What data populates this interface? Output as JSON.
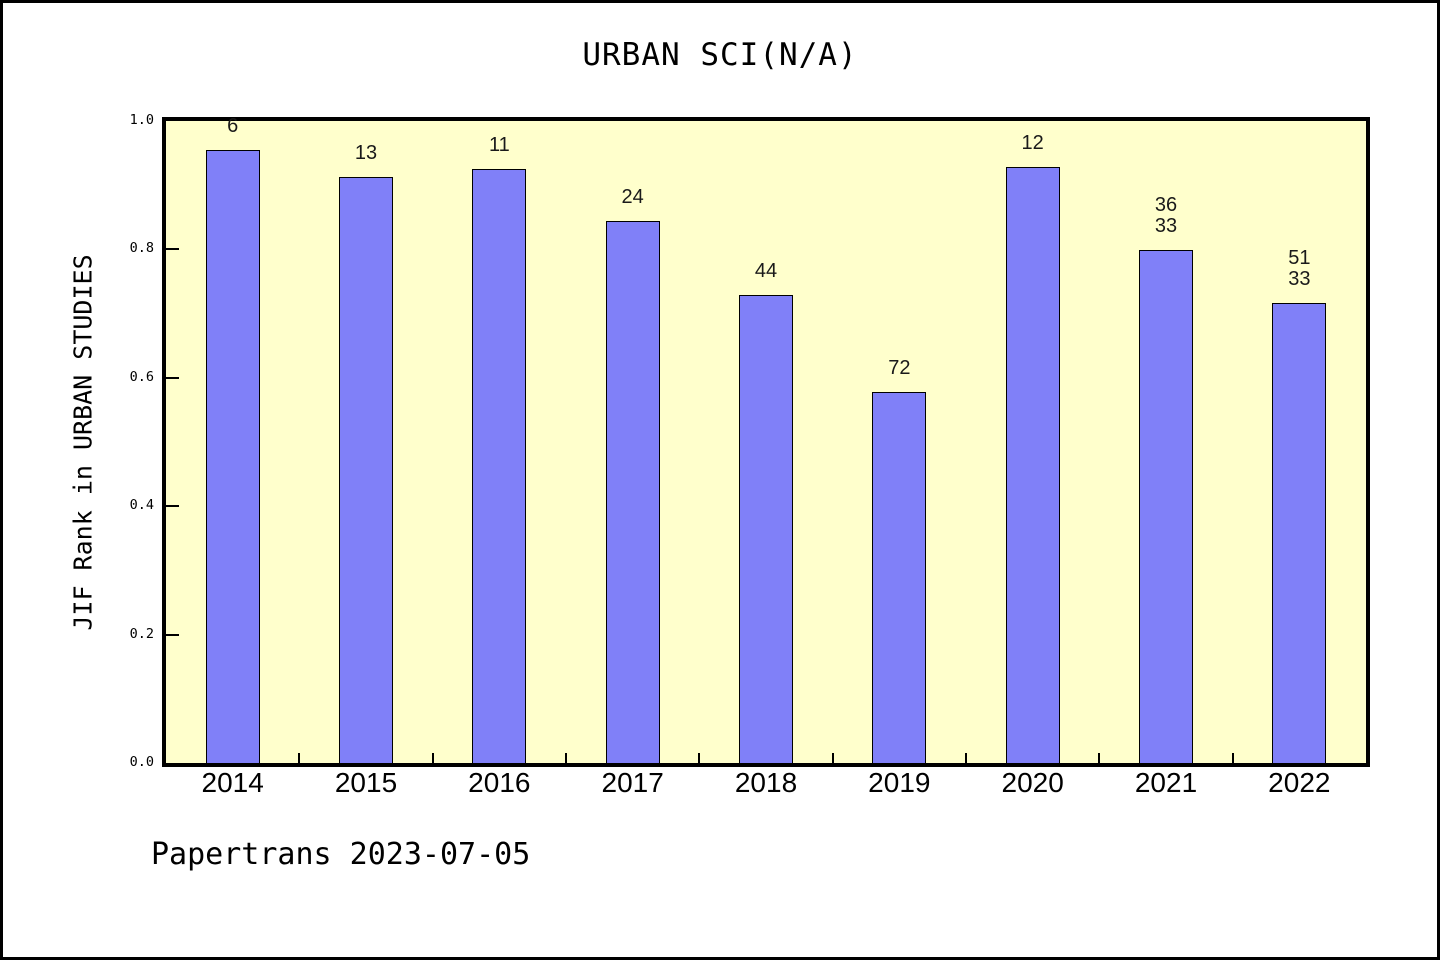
{
  "title": "URBAN SCI(N/A)",
  "footer": "Papertrans 2023-07-05",
  "chart_data": {
    "type": "bar",
    "title": "URBAN SCI(N/A)",
    "xlabel": "",
    "ylabel": "JIF Rank in URBAN STUDIES",
    "categories": [
      "2014",
      "2015",
      "2016",
      "2017",
      "2018",
      "2019",
      "2020",
      "2021",
      "2022"
    ],
    "values": [
      0.955,
      0.913,
      0.926,
      0.844,
      0.729,
      0.578,
      0.928,
      0.799,
      0.717
    ],
    "bar_labels": [
      "6",
      "13",
      "11",
      "24",
      "44",
      "72",
      "12",
      "36\n33",
      "51\n33"
    ],
    "ylim": [
      0.0,
      1.0
    ],
    "ytick_labels": [
      "0.0",
      "0.2",
      "0.4",
      "0.6",
      "0.8",
      "1.0"
    ],
    "ytick_values": [
      0.0,
      0.2,
      0.4,
      0.6,
      0.8,
      1.0
    ],
    "grid": "off",
    "legend": "none",
    "colors": {
      "bar_fill": "#8080F8",
      "bar_edge": "#000000",
      "plot_background": "#FFFFCC",
      "page_background": "#FFFFFF",
      "axis": "#000000",
      "text": "#000000"
    }
  }
}
